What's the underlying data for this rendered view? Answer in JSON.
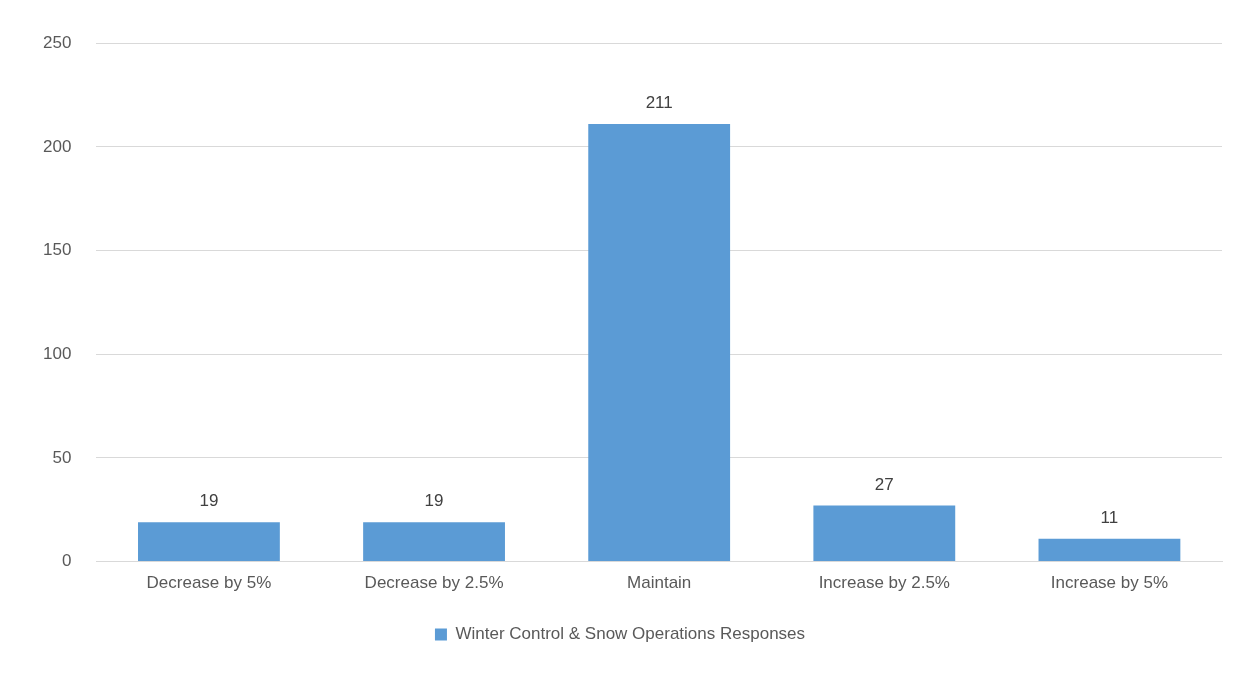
{
  "chart_data": {
    "type": "bar",
    "categories": [
      "Decrease by 5%",
      "Decrease by 2.5%",
      "Maintain",
      "Increase by 2.5%",
      "Increase by 5%"
    ],
    "series": [
      {
        "name": "Winter Control & Snow Operations Responses",
        "color": "#5b9bd5",
        "values": [
          19,
          19,
          211,
          27,
          11
        ]
      }
    ],
    "ylim": [
      0,
      250
    ],
    "yticks": [
      0,
      50,
      100,
      150,
      200,
      250
    ],
    "grid": "y",
    "legend": "bottom",
    "data_labels": true
  }
}
